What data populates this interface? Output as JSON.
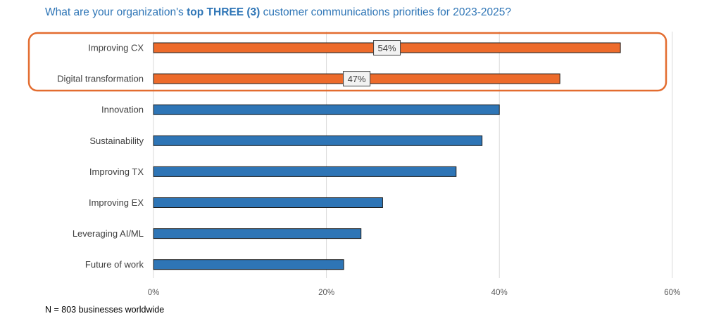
{
  "title": {
    "prefix": "What are your organization's ",
    "bold": "top THREE (3)",
    "suffix": " customer communications priorities for 2023-2025?"
  },
  "footnote": "N = 803 businesses worldwide",
  "colors": {
    "highlight": "#ed6b2b",
    "default": "#2e75b6",
    "outline": "#1f1f1f",
    "callout_border": "#e36c2f",
    "grid": "#d9d9d9"
  },
  "chart_data": {
    "type": "bar",
    "orientation": "horizontal",
    "categories": [
      "Improving CX",
      "Digital transformation",
      "Innovation",
      "Sustainability",
      "Improving TX",
      "Improving EX",
      "Leveraging AI/ML",
      "Future of work"
    ],
    "values": [
      54,
      47,
      40,
      38,
      35,
      26.5,
      24,
      22
    ],
    "highlighted": [
      true,
      true,
      false,
      false,
      false,
      false,
      false,
      false
    ],
    "data_labels": [
      "54%",
      "47%",
      null,
      null,
      null,
      null,
      null,
      null
    ],
    "xlim": [
      0,
      60
    ],
    "xticks": [
      "0%",
      "20%",
      "40%",
      "60%"
    ],
    "xtick_values": [
      0,
      20,
      40,
      60
    ],
    "grid": true,
    "legend": "none"
  }
}
